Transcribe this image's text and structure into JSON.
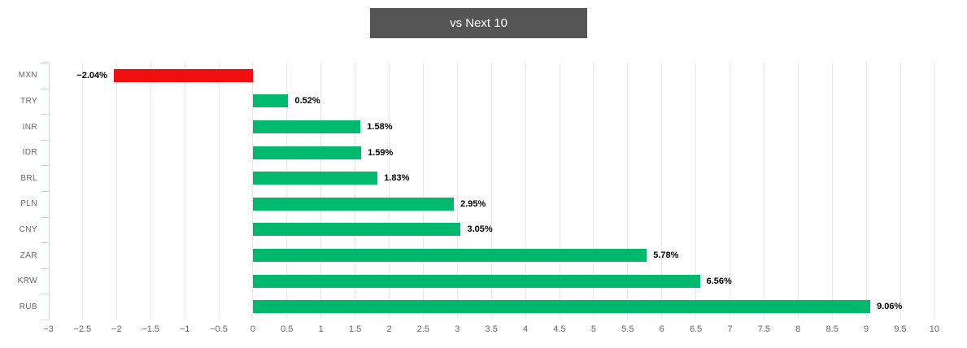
{
  "header": {
    "title": "vs Next 10"
  },
  "colors": {
    "title_bg": "#555555",
    "title_text": "#ffffff",
    "positive_bar": "#00b96d",
    "negative_bar": "#f10e10",
    "grid": "#e8e8e8",
    "axis": "#ccd6eb",
    "category_label": "#666666",
    "tick_label": "#666666",
    "value_label": "#000000",
    "background": "#ffffff"
  },
  "chart_data": {
    "type": "bar",
    "orientation": "horizontal",
    "title": "vs Next 10",
    "categories": [
      "MXN",
      "TRY",
      "INR",
      "IDR",
      "BRL",
      "PLN",
      "CNY",
      "ZAR",
      "KRW",
      "RUB"
    ],
    "values": [
      -2.04,
      0.52,
      1.58,
      1.59,
      1.83,
      2.95,
      3.05,
      5.78,
      6.56,
      9.06
    ],
    "value_labels": [
      "−2.04%",
      "0.52%",
      "1.58%",
      "1.59%",
      "1.83%",
      "2.95%",
      "3.05%",
      "5.78%",
      "6.56%",
      "9.06%"
    ],
    "xlabel": "",
    "ylabel": "",
    "xlim": [
      -3,
      10
    ],
    "x_ticks": [
      -3,
      -2.5,
      -2,
      -1.5,
      -1,
      -0.5,
      0,
      0.5,
      1,
      1.5,
      2,
      2.5,
      3,
      3.5,
      4,
      4.5,
      5,
      5.5,
      6,
      6.5,
      7,
      7.5,
      8,
      8.5,
      9,
      9.5,
      10
    ],
    "x_tick_labels": [
      "−3",
      "−2.5",
      "−2",
      "−1.5",
      "−1",
      "−0.5",
      "0",
      "0.5",
      "1",
      "1.5",
      "2",
      "2.5",
      "3",
      "3.5",
      "4",
      "4.5",
      "5",
      "5.5",
      "6",
      "6.5",
      "7",
      "7.5",
      "8",
      "8.5",
      "9",
      "9.5",
      "10"
    ],
    "grid": true,
    "legend": "none"
  }
}
